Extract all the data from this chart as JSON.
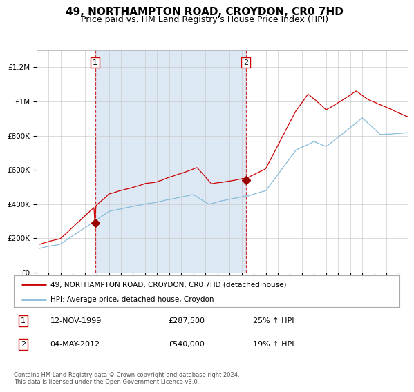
{
  "title": "49, NORTHAMPTON ROAD, CROYDON, CR0 7HD",
  "subtitle": "Price paid vs. HM Land Registry's House Price Index (HPI)",
  "title_fontsize": 11,
  "subtitle_fontsize": 9,
  "background_color": "#ffffff",
  "plot_bg_color": "#ffffff",
  "shaded_region_color": "#dce9f5",
  "grid_color": "#cccccc",
  "red_line_color": "#cc0000",
  "blue_line_color": "#88bbd8",
  "sale1_date_num": 1999.87,
  "sale1_price": 287500,
  "sale2_date_num": 2012.35,
  "sale2_price": 540000,
  "legend_label_red": "49, NORTHAMPTON ROAD, CROYDON, CR0 7HD (detached house)",
  "legend_label_blue": "HPI: Average price, detached house, Croydon",
  "annotation1_date": "12-NOV-1999",
  "annotation1_price": "£287,500",
  "annotation1_hpi": "25% ↑ HPI",
  "annotation2_date": "04-MAY-2012",
  "annotation2_price": "£540,000",
  "annotation2_hpi": "19% ↑ HPI",
  "footer": "Contains HM Land Registry data © Crown copyright and database right 2024.\nThis data is licensed under the Open Government Licence v3.0.",
  "ylim": [
    0,
    1300000
  ],
  "yticks": [
    0,
    200000,
    400000,
    600000,
    800000,
    1000000,
    1200000
  ],
  "ytick_labels": [
    "£0",
    "£200K",
    "£400K",
    "£600K",
    "£800K",
    "£1M",
    "£1.2M"
  ],
  "xstart": 1995.25,
  "xend": 2025.75
}
